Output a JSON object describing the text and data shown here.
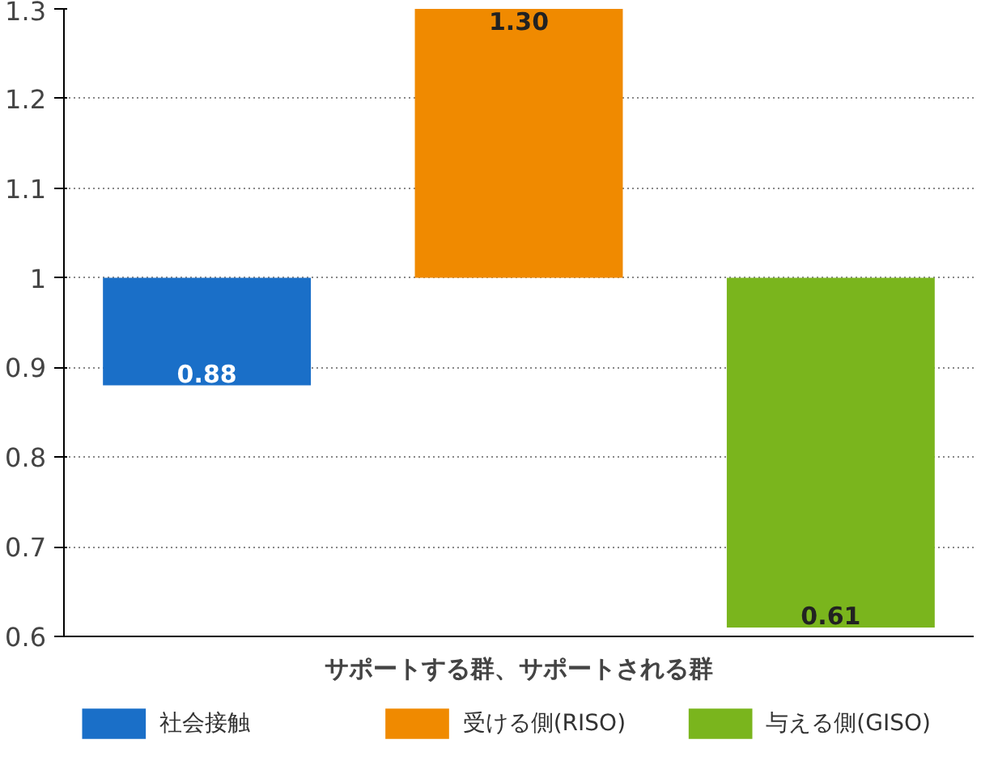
{
  "chart_data": {
    "type": "bar",
    "xlabel": "サポートする群、サポートされる群",
    "categories": [
      null
    ],
    "series": [
      {
        "name": "社会接触",
        "color": "#1a6fc8",
        "base": [
          1
        ],
        "values": [
          -0.12
        ],
        "value_labels": [
          "0.88"
        ]
      },
      {
        "name": "受ける側(RISO)",
        "color": "#f08a00",
        "base": [
          1
        ],
        "values": [
          0.3
        ],
        "value_labels": [
          "1.30"
        ]
      },
      {
        "name": "与える側(GISO)",
        "color": "#7ab51d",
        "base": [
          1
        ],
        "values": [
          -0.39
        ],
        "value_labels": [
          "0.61"
        ]
      }
    ],
    "ylim": [
      0.6,
      1.3
    ],
    "yticks": [
      0.6,
      0.7,
      0.8,
      0.9,
      1,
      1.1,
      1.2,
      1.3
    ],
    "grid": "y",
    "legend": "bottom"
  }
}
